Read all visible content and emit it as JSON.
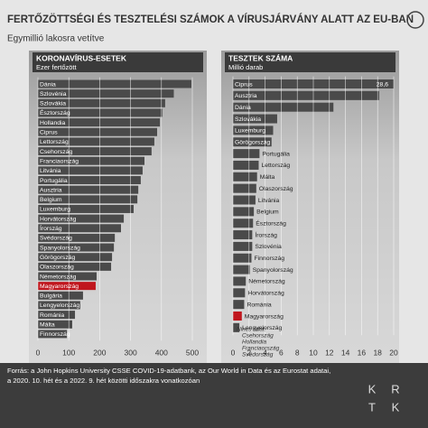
{
  "title": "FERTŐZÖTTSÉGI ÉS TESZTELÉSI SZÁMOK A VÍRUSJÁRVÁNY ALATT AZ EU-BAN",
  "subtitle": "Egymillió lakosra vetítve",
  "source": [
    "Forrás: a John Hopkins University CSSE COVID-19-adatbank, az Our World in Data és az Eurostat adatai,",
    "a 2020. 10. hét és a 2022. 9. hét közötti időszakra vonatkozóan"
  ],
  "logo": [
    "K",
    "R",
    "T",
    "K"
  ],
  "chart_data": [
    {
      "type": "bar",
      "orientation": "horizontal",
      "title": "KORONAVÍRUS-ESETEK",
      "subtitle": "Ezer fertőzött",
      "categories": [
        "Dánia",
        "Szlovénia",
        "Szlovákia",
        "Észtország",
        "Hollandia",
        "Ciprus",
        "Lettország",
        "Csehország",
        "Franciaország",
        "Litvánia",
        "Portugália",
        "Ausztria",
        "Belgium",
        "Luxemburg",
        "Horvátország",
        "Írország",
        "Svédország",
        "Spanyolország",
        "Görögország",
        "Olaszország",
        "Németország",
        "Magyarország",
        "Bulgária",
        "Lengyelország",
        "Románia",
        "Málta",
        "Finnország"
      ],
      "values": [
        497,
        440,
        412,
        403,
        395,
        386,
        377,
        368,
        345,
        339,
        333,
        325,
        322,
        310,
        278,
        269,
        249,
        246,
        240,
        237,
        190,
        187,
        146,
        137,
        120,
        111,
        94
      ],
      "colors": [
        "#4a4a4a",
        "#4a4a4a",
        "#4a4a4a",
        "#4a4a4a",
        "#4a4a4a",
        "#4a4a4a",
        "#4a4a4a",
        "#4a4a4a",
        "#4a4a4a",
        "#4a4a4a",
        "#4a4a4a",
        "#4a4a4a",
        "#4a4a4a",
        "#4a4a4a",
        "#4a4a4a",
        "#4a4a4a",
        "#4a4a4a",
        "#4a4a4a",
        "#4a4a4a",
        "#4a4a4a",
        "#4a4a4a",
        "#c0161d",
        "#4a4a4a",
        "#4a4a4a",
        "#4a4a4a",
        "#4a4a4a",
        "#4a4a4a"
      ],
      "xlim": [
        0,
        500
      ],
      "xticks": [
        0,
        100,
        200,
        300,
        400,
        500
      ],
      "grid": true
    },
    {
      "type": "bar",
      "orientation": "horizontal",
      "title": "TESZTEK SZÁMA",
      "subtitle": "Millió darab",
      "categories": [
        "Ciprus",
        "Ausztria",
        "Dánia",
        "Szlovákia",
        "Luxemburg",
        "Görögország",
        "Portugália",
        "Lettország",
        "Málta",
        "Olaszország",
        "Litvánia",
        "Belgium",
        "Észtország",
        "Írország",
        "Szlovénia",
        "Finnország",
        "Spanyolország",
        "Németország",
        "Horvátország",
        "Románia",
        "Magyarország",
        "Lengyelország"
      ],
      "values": [
        28.6,
        18.2,
        12.5,
        5.5,
        5.0,
        4.8,
        3.3,
        3.2,
        3.0,
        2.9,
        2.8,
        2.6,
        2.5,
        2.4,
        2.4,
        2.3,
        2.1,
        1.6,
        1.5,
        1.4,
        1.1,
        0.8
      ],
      "value_labels": [
        "28,6",
        null,
        null,
        null,
        null,
        null,
        null,
        null,
        null,
        null,
        null,
        null,
        null,
        null,
        null,
        null,
        null,
        null,
        null,
        null,
        null,
        null
      ],
      "colors": [
        "#4a4a4a",
        "#4a4a4a",
        "#4a4a4a",
        "#4a4a4a",
        "#4a4a4a",
        "#4a4a4a",
        "#4a4a4a",
        "#4a4a4a",
        "#4a4a4a",
        "#4a4a4a",
        "#4a4a4a",
        "#4a4a4a",
        "#4a4a4a",
        "#4a4a4a",
        "#4a4a4a",
        "#4a4a4a",
        "#4a4a4a",
        "#4a4a4a",
        "#4a4a4a",
        "#4a4a4a",
        "#c0161d",
        "#4a4a4a"
      ],
      "annotation": [
        "Nincs adat:",
        "Csehország",
        "Hollandia",
        "Franciaország",
        "Svédország"
      ],
      "xlim": [
        0,
        20
      ],
      "xticks": [
        0,
        2,
        4,
        6,
        8,
        10,
        12,
        14,
        16,
        18,
        20
      ],
      "grid": true
    }
  ]
}
